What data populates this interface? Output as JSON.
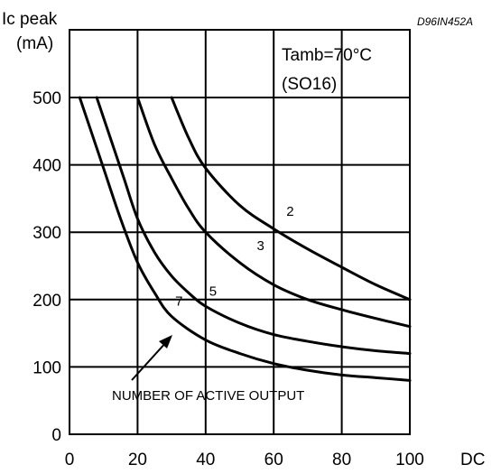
{
  "chart_data": {
    "type": "line",
    "code": "D96IN452A",
    "ylabel_line1": "Ic peak",
    "ylabel_line2": "(mA)",
    "xlabel": "DC",
    "annotation_line1": "Tamb=70°C",
    "annotation_line2": "(SO16)",
    "arrow_label": "NUMBER OF ACTIVE OUTPUT",
    "xlim": [
      0,
      100
    ],
    "ylim": [
      0,
      500
    ],
    "grid": true,
    "x_ticks": [
      0,
      20,
      40,
      60,
      80,
      100
    ],
    "y_ticks": [
      0,
      100,
      200,
      300,
      400,
      500
    ],
    "series": [
      {
        "name": "2",
        "x": [
          30,
          35,
          40,
          50,
          60,
          70,
          80,
          90,
          100
        ],
        "y": [
          500,
          440,
          395,
          340,
          305,
          275,
          248,
          222,
          200
        ]
      },
      {
        "name": "3",
        "x": [
          20,
          25,
          30,
          35,
          40,
          50,
          60,
          70,
          80,
          90,
          100
        ],
        "y": [
          500,
          430,
          380,
          335,
          300,
          255,
          222,
          200,
          185,
          172,
          160
        ]
      },
      {
        "name": "5",
        "x": [
          8,
          12,
          16,
          20,
          25,
          30,
          35,
          40,
          50,
          60,
          70,
          80,
          90,
          100
        ],
        "y": [
          500,
          440,
          380,
          320,
          270,
          235,
          210,
          190,
          165,
          148,
          138,
          130,
          124,
          120
        ]
      },
      {
        "name": "7",
        "x": [
          3,
          6,
          10,
          15,
          20,
          25,
          30,
          40,
          50,
          60,
          70,
          80,
          90,
          100
        ],
        "y": [
          500,
          455,
          395,
          320,
          255,
          210,
          175,
          140,
          120,
          105,
          95,
          88,
          84,
          80
        ]
      }
    ]
  }
}
